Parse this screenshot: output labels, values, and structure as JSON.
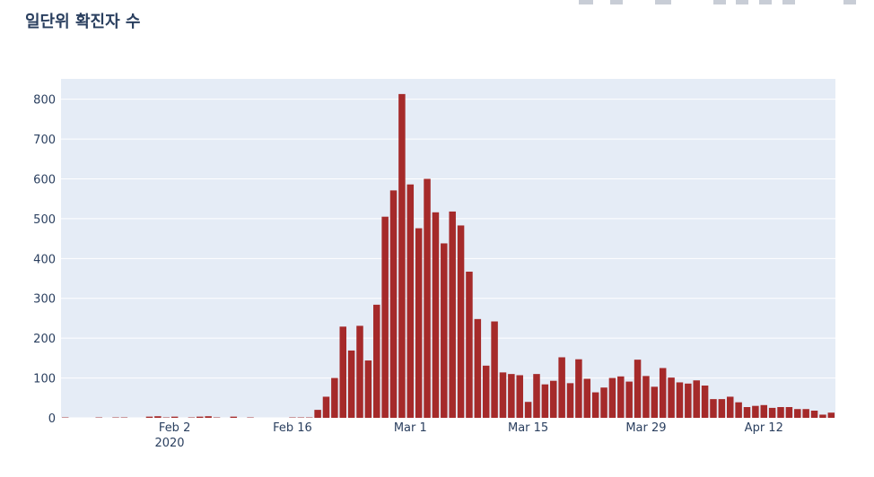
{
  "chart_data": {
    "type": "bar",
    "title": "일단위 확진자 수",
    "x": [
      "2020-01-20",
      "2020-01-21",
      "2020-01-22",
      "2020-01-23",
      "2020-01-24",
      "2020-01-25",
      "2020-01-26",
      "2020-01-27",
      "2020-01-28",
      "2020-01-29",
      "2020-01-30",
      "2020-01-31",
      "2020-02-01",
      "2020-02-02",
      "2020-02-03",
      "2020-02-04",
      "2020-02-05",
      "2020-02-06",
      "2020-02-07",
      "2020-02-08",
      "2020-02-09",
      "2020-02-10",
      "2020-02-11",
      "2020-02-12",
      "2020-02-13",
      "2020-02-14",
      "2020-02-15",
      "2020-02-16",
      "2020-02-17",
      "2020-02-18",
      "2020-02-19",
      "2020-02-20",
      "2020-02-21",
      "2020-02-22",
      "2020-02-23",
      "2020-02-24",
      "2020-02-25",
      "2020-02-26",
      "2020-02-27",
      "2020-02-28",
      "2020-02-29",
      "2020-03-01",
      "2020-03-02",
      "2020-03-03",
      "2020-03-04",
      "2020-03-05",
      "2020-03-06",
      "2020-03-07",
      "2020-03-08",
      "2020-03-09",
      "2020-03-10",
      "2020-03-11",
      "2020-03-12",
      "2020-03-13",
      "2020-03-14",
      "2020-03-15",
      "2020-03-16",
      "2020-03-17",
      "2020-03-18",
      "2020-03-19",
      "2020-03-20",
      "2020-03-21",
      "2020-03-22",
      "2020-03-23",
      "2020-03-24",
      "2020-03-25",
      "2020-03-26",
      "2020-03-27",
      "2020-03-28",
      "2020-03-29",
      "2020-03-30",
      "2020-03-31",
      "2020-04-01",
      "2020-04-02",
      "2020-04-03",
      "2020-04-04",
      "2020-04-05",
      "2020-04-06",
      "2020-04-07",
      "2020-04-08",
      "2020-04-09",
      "2020-04-10",
      "2020-04-11",
      "2020-04-12",
      "2020-04-13",
      "2020-04-14",
      "2020-04-15",
      "2020-04-16",
      "2020-04-17",
      "2020-04-18",
      "2020-04-19",
      "2020-04-20"
    ],
    "values": [
      1,
      0,
      0,
      0,
      1,
      0,
      1,
      1,
      0,
      0,
      3,
      4,
      1,
      3,
      0,
      1,
      3,
      4,
      1,
      0,
      3,
      0,
      1,
      0,
      0,
      0,
      0,
      1,
      1,
      1,
      20,
      53,
      100,
      229,
      169,
      231,
      144,
      284,
      505,
      571,
      813,
      586,
      476,
      600,
      516,
      438,
      518,
      483,
      367,
      248,
      131,
      242,
      114,
      110,
      107,
      40,
      110,
      84,
      93,
      152,
      87,
      147,
      98,
      64,
      76,
      100,
      104,
      91,
      146,
      105,
      78,
      125,
      101,
      89,
      86,
      94,
      81,
      47,
      47,
      53,
      39,
      27,
      30,
      32,
      25,
      27,
      27,
      22,
      22,
      18,
      8,
      13
    ],
    "color": "#a52a2a",
    "xlim": [
      "2020-01-19T12:00:00Z",
      "2020-04-20T12:00:00Z"
    ],
    "xticks": [
      {
        "value": "2020-02-02",
        "label": "Feb 2"
      },
      {
        "value": "2020-02-16",
        "label": "Feb 16"
      },
      {
        "value": "2020-03-01",
        "label": "Mar 1"
      },
      {
        "value": "2020-03-15",
        "label": "Mar 15"
      },
      {
        "value": "2020-03-29",
        "label": "Mar 29"
      },
      {
        "value": "2020-04-12",
        "label": "Apr 12"
      }
    ],
    "x_year": "2020",
    "ylim": [
      0,
      851
    ],
    "yticks": [
      0,
      100,
      200,
      300,
      400,
      500,
      600,
      700,
      800
    ],
    "grid": true
  }
}
